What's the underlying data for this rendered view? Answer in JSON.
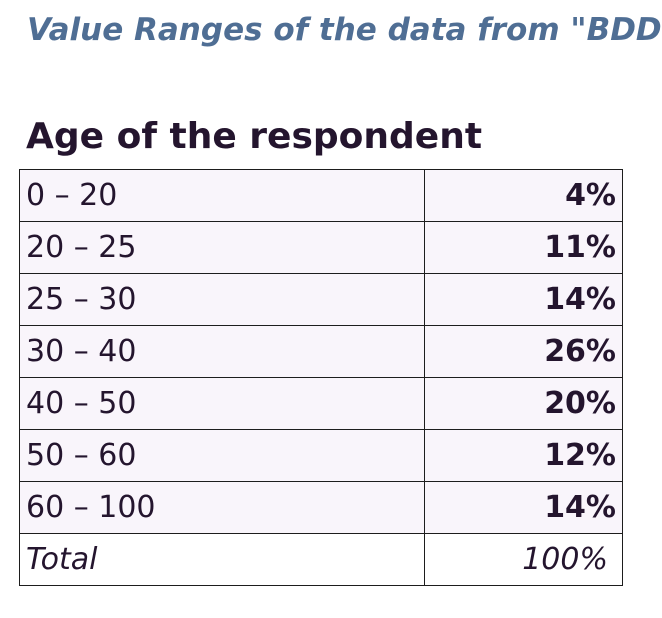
{
  "document": {
    "title": "Value Ranges of the data from \"BDD\"",
    "section_heading": "Age of the respondent"
  },
  "table": {
    "rows": [
      {
        "range": "0 – 20",
        "percent": "4%"
      },
      {
        "range": "20 – 25",
        "percent": "11%"
      },
      {
        "range": "25 – 30",
        "percent": "14%"
      },
      {
        "range": "30 – 40",
        "percent": "26%"
      },
      {
        "range": "40 – 50",
        "percent": "20%"
      },
      {
        "range": "50 – 60",
        "percent": "12%"
      },
      {
        "range": "60 – 100",
        "percent": "14%"
      }
    ],
    "total": {
      "label": "Total",
      "percent": "100%"
    }
  },
  "colors": {
    "title": "#4f6e94",
    "text": "#24152e",
    "row_background": "#f9f5fb",
    "border": "#1d1d1d"
  }
}
